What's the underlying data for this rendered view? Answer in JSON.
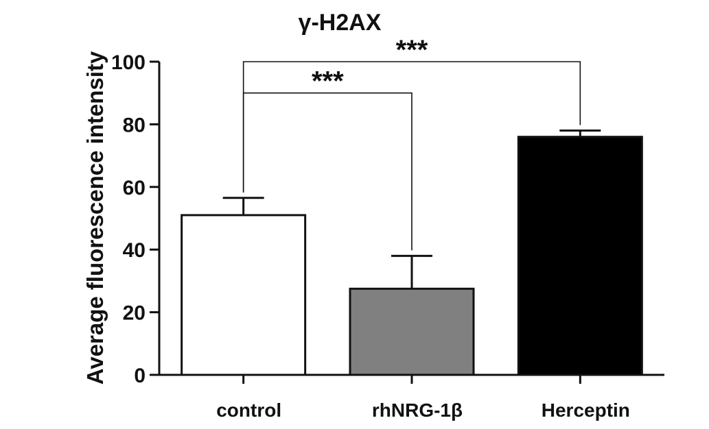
{
  "chart_data": {
    "type": "bar",
    "title": "γ-H2AX",
    "xlabel": "",
    "ylabel": "Average fluorescence intensity",
    "ylim": [
      0,
      100
    ],
    "yticks": [
      0,
      20,
      40,
      60,
      80,
      100
    ],
    "grid": false,
    "legend": "none",
    "categories": [
      "control",
      "rhNRG-1β",
      "Herceptin"
    ],
    "values": [
      51,
      27.5,
      76
    ],
    "errors": [
      5.5,
      10.5,
      2
    ],
    "colors": [
      "#ffffff",
      "#808080",
      "#000000"
    ],
    "significance": [
      {
        "from": 0,
        "to": 1,
        "label": "***",
        "level": 90
      },
      {
        "from": 0,
        "to": 2,
        "label": "***",
        "level": 100
      }
    ]
  }
}
